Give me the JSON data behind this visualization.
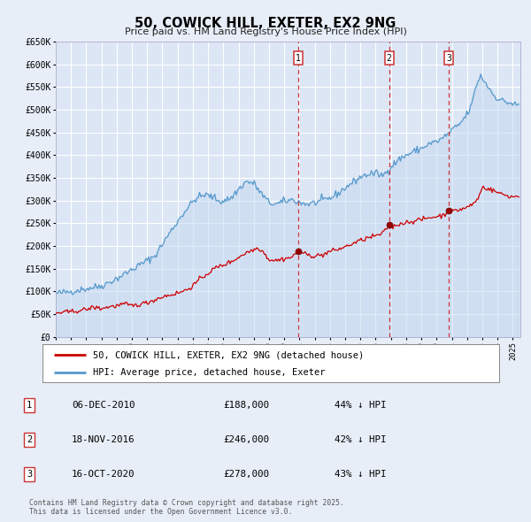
{
  "title": "50, COWICK HILL, EXETER, EX2 9NG",
  "subtitle": "Price paid vs. HM Land Registry's House Price Index (HPI)",
  "ylim": [
    0,
    650000
  ],
  "yticks": [
    0,
    50000,
    100000,
    150000,
    200000,
    250000,
    300000,
    350000,
    400000,
    450000,
    500000,
    550000,
    600000,
    650000
  ],
  "ytick_labels": [
    "£0",
    "£50K",
    "£100K",
    "£150K",
    "£200K",
    "£250K",
    "£300K",
    "£350K",
    "£400K",
    "£450K",
    "£500K",
    "£550K",
    "£600K",
    "£650K"
  ],
  "xlim_start": 1995.0,
  "xlim_end": 2025.5,
  "background_color": "#e8eef8",
  "plot_bg_color": "#dce6f5",
  "grid_color": "#ffffff",
  "red_line_color": "#cc0000",
  "blue_line_color": "#5599cc",
  "blue_fill_color": "#c5d8f0",
  "sale_marker_color": "#990000",
  "vline_color": "#cc3333",
  "legend_label_red": "50, COWICK HILL, EXETER, EX2 9NG (detached house)",
  "legend_label_blue": "HPI: Average price, detached house, Exeter",
  "footer_text": "Contains HM Land Registry data © Crown copyright and database right 2025.\nThis data is licensed under the Open Government Licence v3.0.",
  "sales": [
    {
      "num": 1,
      "date": "06-DEC-2010",
      "price": 188000,
      "pct": "44%",
      "year": 2010.92
    },
    {
      "num": 2,
      "date": "18-NOV-2016",
      "price": 246000,
      "pct": "42%",
      "year": 2016.88
    },
    {
      "num": 3,
      "date": "16-OCT-2020",
      "price": 278000,
      "pct": "43%",
      "year": 2020.79
    }
  ]
}
